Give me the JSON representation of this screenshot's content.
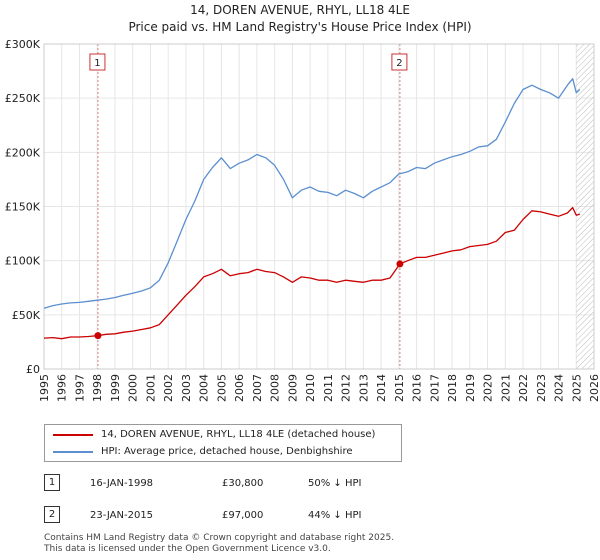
{
  "title_line1": "14, DOREN AVENUE, RHYL, LL18 4LE",
  "title_line2": "Price paid vs. HM Land Registry's House Price Index (HPI)",
  "colors": {
    "price": "#cc0000",
    "hpi": "#5b8fd0",
    "marker_line": "#e08080",
    "grid": "#e6e6e6",
    "hatch": "#bbbbbb"
  },
  "chart_data": {
    "type": "line",
    "title": "Price paid vs. HM Land Registry's House Price Index (HPI)",
    "xlabel": "",
    "ylabel": "",
    "xlim": [
      1995,
      2026
    ],
    "ylim": [
      0,
      300000
    ],
    "y_ticks": [
      0,
      50000,
      100000,
      150000,
      200000,
      250000,
      300000
    ],
    "y_tick_labels": [
      "£0",
      "£50K",
      "£100K",
      "£150K",
      "£200K",
      "£250K",
      "£300K"
    ],
    "x_ticks": [
      1995,
      1996,
      1997,
      1998,
      1999,
      2000,
      2001,
      2002,
      2003,
      2004,
      2005,
      2006,
      2007,
      2008,
      2009,
      2010,
      2011,
      2012,
      2013,
      2014,
      2015,
      2016,
      2017,
      2018,
      2019,
      2020,
      2021,
      2022,
      2023,
      2024,
      2025,
      2026
    ],
    "x_tick_labels": [
      "1995",
      "1996",
      "1997",
      "1998",
      "1999",
      "2000",
      "2001",
      "2002",
      "2003",
      "2004",
      "2005",
      "2006",
      "2007",
      "2008",
      "2009",
      "2010",
      "2011",
      "2012",
      "2013",
      "2014",
      "2015",
      "2016",
      "2017",
      "2018",
      "2019",
      "2020",
      "2021",
      "2022",
      "2023",
      "2024",
      "2025",
      "2026"
    ],
    "hatch_from": 2025.0,
    "series": [
      {
        "name": "14, DOREN AVENUE, RHYL, LL18 4LE (detached house)",
        "color": "#cc0000",
        "x": [
          1995.0,
          1995.5,
          1996.0,
          1996.5,
          1997.0,
          1997.5,
          1998.04,
          1998.5,
          1999.0,
          1999.5,
          2000.0,
          2000.5,
          2001.0,
          2001.5,
          2002.0,
          2002.5,
          2003.0,
          2003.5,
          2004.0,
          2004.5,
          2005.0,
          2005.5,
          2006.0,
          2006.5,
          2007.0,
          2007.5,
          2008.0,
          2008.5,
          2009.0,
          2009.5,
          2010.0,
          2010.5,
          2011.0,
          2011.5,
          2012.0,
          2012.5,
          2013.0,
          2013.5,
          2014.0,
          2014.5,
          2015.06,
          2015.5,
          2016.0,
          2016.5,
          2017.0,
          2017.5,
          2018.0,
          2018.5,
          2019.0,
          2019.5,
          2020.0,
          2020.5,
          2021.0,
          2021.5,
          2022.0,
          2022.5,
          2023.0,
          2023.5,
          2024.0,
          2024.5,
          2024.8,
          2025.0,
          2025.2
        ],
        "y": [
          28500,
          29000,
          28000,
          29500,
          29500,
          30000,
          30800,
          32000,
          32500,
          34000,
          35000,
          36500,
          38000,
          41000,
          50000,
          59000,
          68000,
          76000,
          85000,
          88000,
          92000,
          86000,
          88000,
          89000,
          92000,
          90000,
          89000,
          85000,
          80000,
          85000,
          84000,
          82000,
          82000,
          80000,
          82000,
          81000,
          80000,
          82000,
          82000,
          84000,
          97000,
          100000,
          103000,
          103000,
          105000,
          107000,
          109000,
          110000,
          113000,
          114000,
          115000,
          118000,
          126000,
          128000,
          138000,
          146000,
          145000,
          143000,
          141000,
          144000,
          149000,
          142000,
          143000
        ]
      },
      {
        "name": "HPI: Average price, detached house, Denbighshire",
        "color": "#5b8fd0",
        "x": [
          1995.0,
          1995.5,
          1996.0,
          1996.5,
          1997.0,
          1997.5,
          1998.0,
          1998.5,
          1999.0,
          1999.5,
          2000.0,
          2000.5,
          2001.0,
          2001.5,
          2002.0,
          2002.5,
          2003.0,
          2003.5,
          2004.0,
          2004.5,
          2005.0,
          2005.5,
          2006.0,
          2006.5,
          2007.0,
          2007.5,
          2008.0,
          2008.5,
          2009.0,
          2009.5,
          2010.0,
          2010.5,
          2011.0,
          2011.5,
          2012.0,
          2012.5,
          2013.0,
          2013.5,
          2014.0,
          2014.5,
          2015.0,
          2015.5,
          2016.0,
          2016.5,
          2017.0,
          2017.5,
          2018.0,
          2018.5,
          2019.0,
          2019.5,
          2020.0,
          2020.5,
          2021.0,
          2021.5,
          2022.0,
          2022.5,
          2023.0,
          2023.5,
          2024.0,
          2024.5,
          2024.8,
          2025.0,
          2025.2
        ],
        "y": [
          56000,
          58500,
          60000,
          61000,
          61500,
          62500,
          63500,
          64500,
          66000,
          68000,
          70000,
          72000,
          75000,
          82000,
          98000,
          118000,
          138000,
          155000,
          175000,
          186000,
          195000,
          185000,
          190000,
          193000,
          198000,
          195000,
          188000,
          175000,
          158000,
          165000,
          168000,
          164000,
          163000,
          160000,
          165000,
          162000,
          158000,
          164000,
          168000,
          172000,
          180000,
          182000,
          186000,
          185000,
          190000,
          193000,
          196000,
          198000,
          201000,
          205000,
          206000,
          212000,
          228000,
          245000,
          258000,
          262000,
          258000,
          255000,
          250000,
          262000,
          268000,
          255000,
          258000
        ]
      }
    ],
    "annotations": [
      {
        "label": "1",
        "x": 1998.04,
        "y": 30800
      },
      {
        "label": "2",
        "x": 2015.06,
        "y": 97000
      }
    ]
  },
  "legend": {
    "items": [
      {
        "label": "14, DOREN AVENUE, RHYL, LL18 4LE (detached house)",
        "color": "#cc0000"
      },
      {
        "label": "HPI: Average price, detached house, Denbighshire",
        "color": "#5b8fd0"
      }
    ]
  },
  "transactions": [
    {
      "num": "1",
      "date": "16-JAN-1998",
      "price": "£30,800",
      "hpi": "50% ↓ HPI"
    },
    {
      "num": "2",
      "date": "23-JAN-2015",
      "price": "£97,000",
      "hpi": "44% ↓ HPI"
    }
  ],
  "footer": {
    "line1": "Contains HM Land Registry data © Crown copyright and database right 2025.",
    "line2": "This data is licensed under the Open Government Licence v3.0."
  }
}
